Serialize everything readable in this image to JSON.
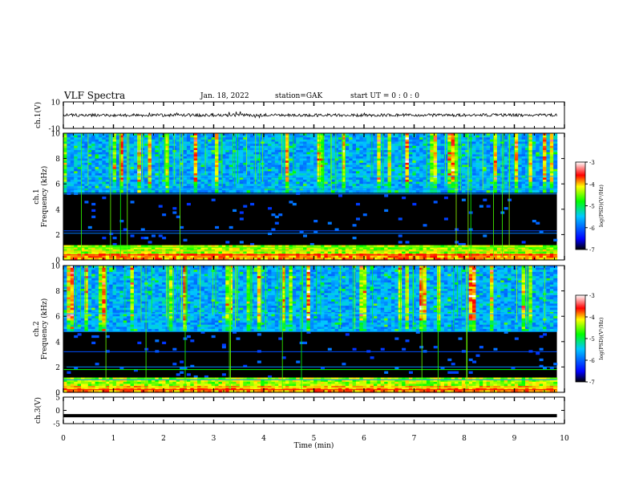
{
  "header": {
    "title": "VLF Spectra",
    "date": "Jan. 18, 2022",
    "station": "station=GAK",
    "start": "start  UT =   0 : 0  : 0"
  },
  "chart_data": [
    {
      "type": "line",
      "panel": "ch1-waveform",
      "ylabel": "ch.1(V)",
      "ylim": [
        -10,
        10
      ],
      "yticks": [
        "10",
        "-10"
      ],
      "xlim": [
        0,
        10
      ],
      "description_values": {
        "baseline": 0,
        "typical_amplitude": 1
      }
    },
    {
      "type": "heatmap",
      "panel": "ch1-spectrogram",
      "ylabel": "ch.1 Frequency (kHz)",
      "ylim": [
        0,
        10
      ],
      "yticks": [
        "0",
        "2",
        "4",
        "6",
        "8",
        "10"
      ],
      "xlim": [
        0,
        10
      ],
      "data_end_min": 9.85,
      "colorbar": {
        "label": "log(PSD)(V²/Hz)",
        "range": [
          -7,
          -3
        ],
        "ticks": [
          "-3",
          "-4",
          "-5",
          "-6",
          "-7"
        ]
      }
    },
    {
      "type": "heatmap",
      "panel": "ch2-spectrogram",
      "ylabel": "ch.2 Frequency (kHz)",
      "ylim": [
        0,
        10
      ],
      "yticks": [
        "0",
        "2",
        "4",
        "6",
        "8",
        "10"
      ],
      "xlim": [
        0,
        10
      ],
      "data_end_min": 9.85,
      "colorbar": {
        "label": "log(PSD)(V²/Hz)",
        "range": [
          -7,
          -3
        ],
        "ticks": [
          "-3",
          "-4",
          "-5",
          "-6",
          "-7"
        ]
      }
    },
    {
      "type": "line",
      "panel": "ch3-waveform",
      "ylabel": "ch.3(V)",
      "ylim": [
        -5,
        5
      ],
      "yticks": [
        "5",
        "0",
        "-5"
      ],
      "xlim": [
        0,
        10
      ],
      "xlabel": "Time  (min)",
      "xticks": [
        "0",
        "1",
        "2",
        "3",
        "4",
        "5",
        "6",
        "7",
        "8",
        "9",
        "10"
      ],
      "level": -2
    }
  ],
  "colors": {
    "background": "#ffffff",
    "axes": "#000000",
    "trace": "#000000"
  }
}
